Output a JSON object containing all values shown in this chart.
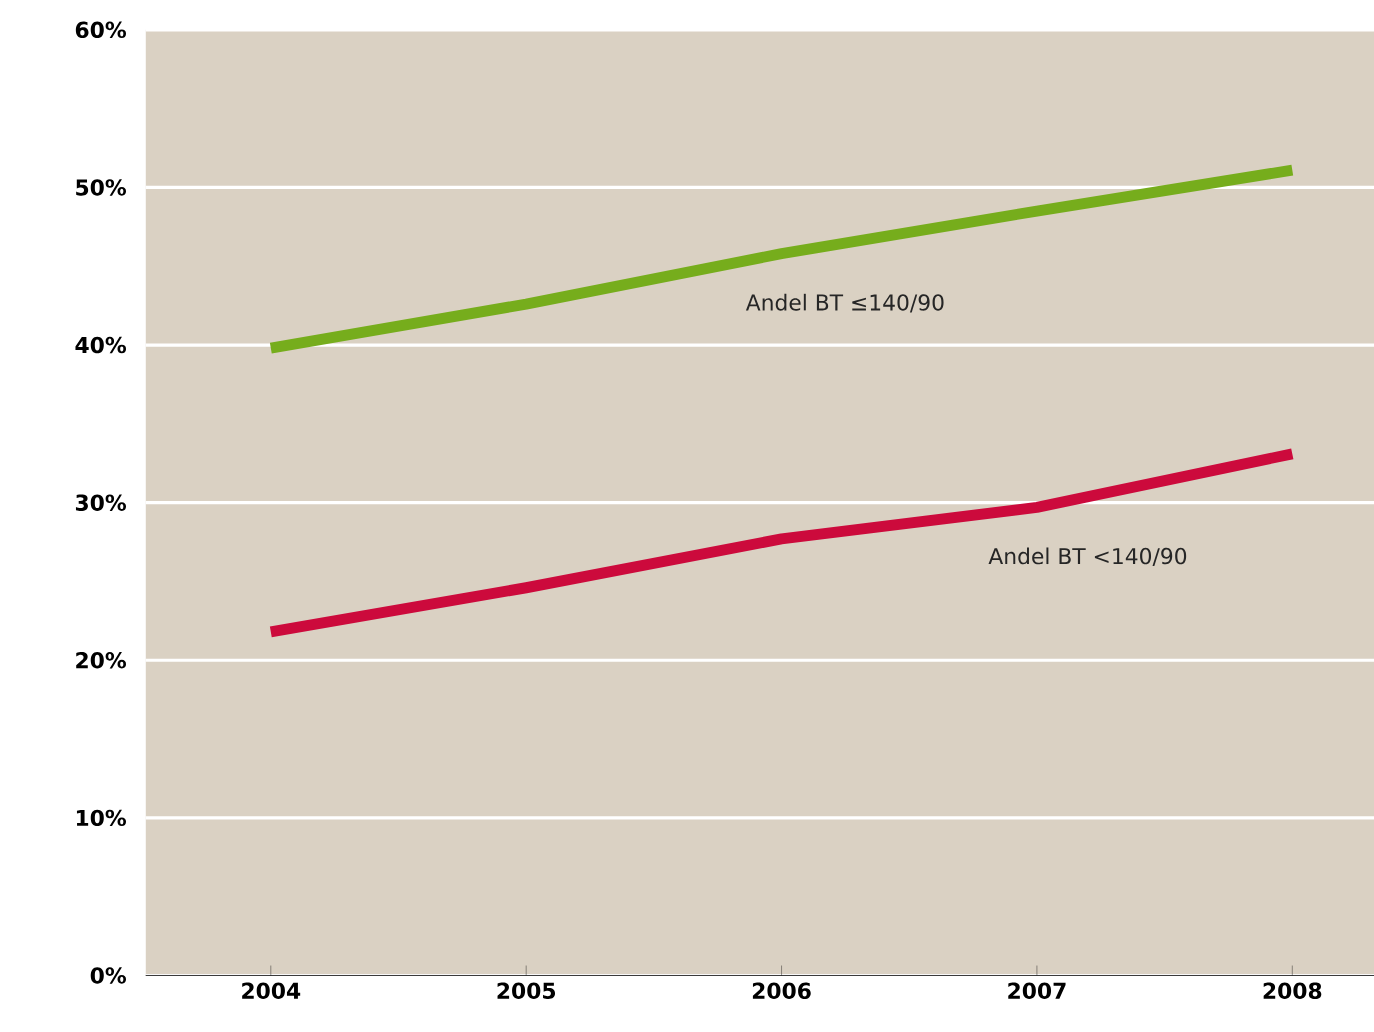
{
  "chart_data": {
    "type": "line",
    "categories": [
      "2004",
      "2005",
      "2006",
      "2007",
      "2008"
    ],
    "series": [
      {
        "name": "Andel BT ≤140/90",
        "color": "#76ad1c",
        "values": [
          39.8,
          42.6,
          45.8,
          48.5,
          51.1
        ]
      },
      {
        "name": "Andel BT <140/90",
        "color": "#cc0a3c",
        "values": [
          21.8,
          24.6,
          27.7,
          29.7,
          33.1
        ]
      }
    ],
    "ylim": [
      0,
      60
    ],
    "yticks": [
      {
        "value": 0,
        "label": "0%"
      },
      {
        "value": 10,
        "label": "10%"
      },
      {
        "value": 20,
        "label": "20%"
      },
      {
        "value": 30,
        "label": "30%"
      },
      {
        "value": 40,
        "label": "40%"
      },
      {
        "value": 50,
        "label": "50%"
      },
      {
        "value": 60,
        "label": "60%"
      }
    ],
    "grid": "y",
    "legend": false,
    "marker": "none",
    "line_style": "solid"
  }
}
